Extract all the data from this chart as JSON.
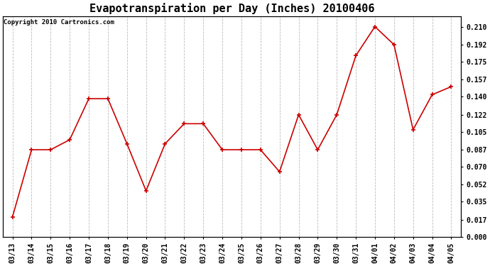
{
  "title": "Evapotranspiration per Day (Inches) 20100406",
  "copyright": "Copyright 2010 Cartronics.com",
  "x_labels": [
    "03/13",
    "03/14",
    "03/15",
    "03/16",
    "03/17",
    "03/18",
    "03/19",
    "03/20",
    "03/21",
    "03/22",
    "03/23",
    "03/24",
    "03/25",
    "03/26",
    "03/27",
    "03/28",
    "03/29",
    "03/30",
    "03/31",
    "04/01",
    "04/02",
    "04/03",
    "04/04",
    "04/05"
  ],
  "y_values": [
    0.02,
    0.087,
    0.087,
    0.097,
    0.138,
    0.138,
    0.093,
    0.046,
    0.093,
    0.113,
    0.113,
    0.087,
    0.087,
    0.087,
    0.065,
    0.122,
    0.087,
    0.122,
    0.181,
    0.21,
    0.192,
    0.107,
    0.142,
    0.15
  ],
  "line_color": "#cc0000",
  "marker": "+",
  "marker_size": 5,
  "background_color": "#ffffff",
  "plot_bg_color": "#ffffff",
  "grid_color": "#aaaaaa",
  "y_tick_values": [
    0.0,
    0.017,
    0.035,
    0.052,
    0.07,
    0.087,
    0.105,
    0.122,
    0.14,
    0.157,
    0.175,
    0.192,
    0.21
  ],
  "ylim": [
    0.0,
    0.2205
  ],
  "title_fontsize": 11,
  "tick_fontsize": 7,
  "copyright_fontsize": 6.5
}
